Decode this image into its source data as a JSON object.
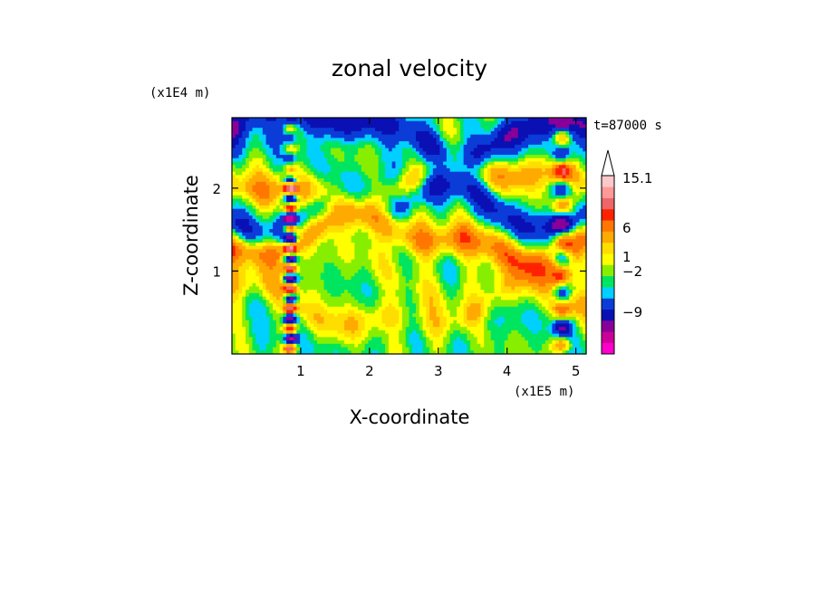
{
  "chart_data": {
    "type": "heatmap",
    "title": "zonal velocity",
    "xlabel": "X-coordinate",
    "ylabel": "Z-coordinate",
    "x_unit": "(x1E5 m)",
    "y_unit": "(x1E4 m)",
    "time_label": "t=87000 s",
    "xlim": [
      0,
      5.15
    ],
    "ylim": [
      0,
      2.85
    ],
    "x_ticks": [
      "1",
      "2",
      "3",
      "4",
      "5"
    ],
    "y_ticks": [
      "1",
      "2"
    ],
    "colorbar": {
      "labels": [
        "15.1",
        "6",
        "1",
        "-2",
        "-9"
      ],
      "colors": [
        "#ff00cc",
        "#cc0099",
        "#880099",
        "#0a10b4",
        "#0b3cd8",
        "#00d0ff",
        "#00e560",
        "#88ee00",
        "#ffff00",
        "#ffdd00",
        "#ffaa00",
        "#ff7700",
        "#ff2200",
        "#ee6666",
        "#ff9999",
        "#ffc8c8"
      ],
      "extend": "top"
    },
    "grid": false
  }
}
